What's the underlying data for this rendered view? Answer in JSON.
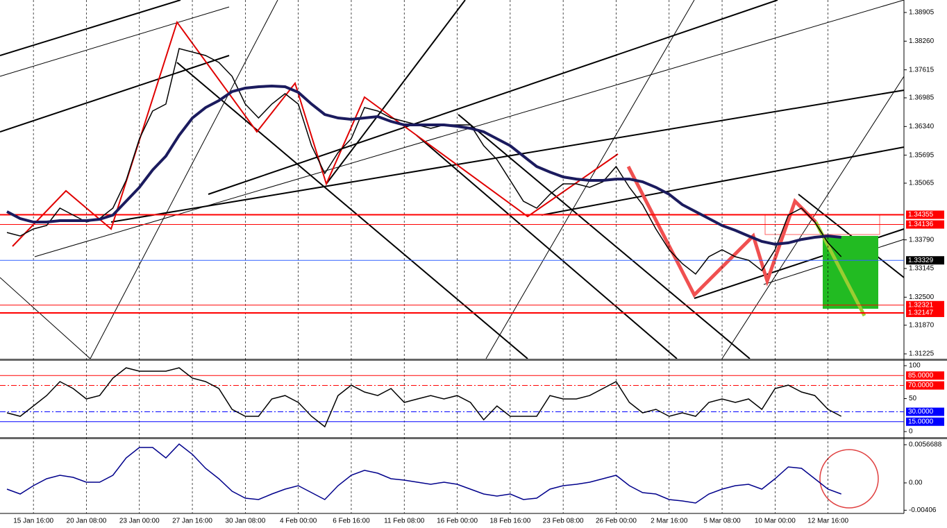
{
  "chart_data": [
    {
      "type": "line",
      "categories": [
        null,
        null,
        "15 Jan 16:00",
        null,
        null,
        null,
        "20 Jan 08:00",
        null,
        null,
        null,
        "23 Jan 00:00",
        null,
        null,
        null,
        "27 Jan 16:00",
        null,
        null,
        null,
        "30 Jan 08:00",
        null,
        null,
        null,
        "4 Feb 00:00",
        null,
        null,
        null,
        "6 Feb 16:00",
        null,
        null,
        null,
        "11 Feb 08:00",
        null,
        null,
        null,
        "16 Feb 00:00",
        null,
        null,
        null,
        "18 Feb 16:00",
        null,
        null,
        null,
        "23 Feb 08:00",
        null,
        null,
        null,
        "26 Feb 00:00",
        null,
        null,
        null,
        "2 Mar 16:00",
        null,
        null,
        null,
        "5 Mar 08:00",
        null,
        null,
        null,
        "10 Mar 00:00",
        null,
        null,
        null,
        "12 Mar 16:00",
        null
      ],
      "series": [
        {
          "color": "#000000",
          "values": [
            1.33956,
            1.33878,
            1.34035,
            1.34113,
            1.34503,
            1.34347,
            1.34191,
            1.34269,
            1.34503,
            1.35127,
            1.36064,
            1.36688,
            1.36844,
            1.38093,
            1.38015,
            1.37937,
            1.37781,
            1.37469,
            1.36844,
            1.36532,
            1.36844,
            1.37079,
            1.36844,
            1.35908,
            1.35283,
            1.35752,
            1.36064,
            1.36766,
            1.36688,
            1.36532,
            1.36454,
            1.36376,
            1.36298,
            1.36376,
            1.36376,
            1.36376,
            1.35908,
            1.35596,
            1.35127,
            1.34659,
            1.34503,
            1.34815,
            1.35049,
            1.35049,
            1.34971,
            1.35096,
            1.35439,
            1.34971,
            1.34581,
            1.34035,
            1.33566,
            1.33254,
            1.3302,
            1.3341,
            1.33566,
            1.3341,
            1.33332,
            1.33098,
            1.33566,
            1.34347,
            1.34503,
            1.34191,
            1.33722,
            1.3341
          ]
        },
        {
          "color": "#1b1b5e",
          "values": [
            1.34425,
            1.34269,
            1.34191,
            1.34191,
            1.34222,
            1.34222,
            1.34222,
            1.34253,
            1.34347,
            1.34659,
            1.34971,
            1.35361,
            1.35674,
            1.36142,
            1.36532,
            1.36766,
            1.36922,
            1.37125,
            1.37203,
            1.37235,
            1.3725,
            1.37235,
            1.3711,
            1.36844,
            1.3661,
            1.36532,
            1.36501,
            1.36532,
            1.36563,
            1.36454,
            1.36376,
            1.36376,
            1.36376,
            1.36376,
            1.36345,
            1.36298,
            1.3622,
            1.36064,
            1.35908,
            1.35674,
            1.35439,
            1.35315,
            1.35205,
            1.35158,
            1.35127,
            1.35127,
            1.35158,
            1.35158,
            1.35096,
            1.34971,
            1.34815,
            1.34581,
            1.34425,
            1.34269,
            1.34113,
            1.34003,
            1.33878,
            1.33754,
            1.33691,
            1.33722,
            1.338,
            1.33847,
            1.33878,
            1.33847
          ]
        }
      ],
      "ylim": [
        1.31116,
        1.39186
      ],
      "yticks": [
        1.38905,
        {
          "value": 1.3826,
          "label": "1.38260"
        },
        1.37615,
        1.36985,
        {
          "value": 1.3634,
          "label": "1.36340"
        },
        1.35695,
        1.35065,
        {
          "value": 1.3379,
          "label": "1.33790"
        },
        1.33145,
        {
          "value": 1.325,
          "label": "1.32500"
        },
        {
          "value": 1.3187,
          "label": "1.31870"
        },
        1.31225
      ],
      "levels": [
        {
          "value": 1.34355,
          "color": "#ff0000",
          "width": 2
        },
        {
          "value": 1.34136,
          "color": "#ff0000",
          "width": 1
        },
        {
          "value": 1.33329,
          "color": "#000000",
          "line_color": "#3060ff",
          "width": 1
        },
        {
          "value": 1.32321,
          "color": "#ff0000",
          "width": 1
        },
        {
          "value": 1.32147,
          "color": "#ff0000",
          "width": 2
        }
      ],
      "grid": true
    },
    {
      "type": "line",
      "series": [
        {
          "color": "#000000",
          "values": [
            28.4,
            23.2,
            38.9,
            54.7,
            75.8,
            65.3,
            49.5,
            54.7,
            81.1,
            96.8,
            91.6,
            91.6,
            91.6,
            96.8,
            81.1,
            75.8,
            65.3,
            33.7,
            23.2,
            23.2,
            49.5,
            54.7,
            44.2,
            23.2,
            7.4,
            54.7,
            70.5,
            60,
            54.7,
            65.3,
            44.2,
            49.5,
            54.7,
            49.5,
            54.7,
            44.2,
            17.9,
            38.9,
            23.2,
            23.2,
            23.2,
            54.7,
            49.5,
            49.5,
            54.7,
            65.3,
            75.8,
            44.2,
            28.4,
            33.7,
            23.2,
            28.4,
            23.2,
            44.2,
            49.5,
            44.2,
            49.5,
            33.7,
            65.3,
            70.5,
            60,
            54.7,
            33.7,
            23.2
          ]
        }
      ],
      "ylim": [
        -8.4,
        107.4
      ],
      "yticks": [
        0,
        50,
        100
      ],
      "levels": [
        {
          "value": 85,
          "label": "85.0000",
          "color": "#ff0000",
          "width": 1
        },
        {
          "value": 70,
          "label": "70.0000",
          "color": "#ff0000",
          "width": 1,
          "dashed": true
        },
        {
          "value": 30,
          "label": "30.0000",
          "color": "#0000ff",
          "width": 1,
          "dashed": true
        },
        {
          "value": 15,
          "label": "15.0000",
          "color": "#0000ff",
          "width": 1
        }
      ]
    },
    {
      "type": "line",
      "series": [
        {
          "color": "#00008b",
          "values": [
            -0.00093,
            -0.00165,
            -0.00041,
            0.00062,
            0.00113,
            0.00082,
            0.0001,
            0.0001,
            0.00113,
            0.00371,
            0.00526,
            0.00526,
            0.00371,
            0.00577,
            0.00423,
            0.00216,
            0.00062,
            -0.00124,
            -0.00227,
            -0.00247,
            -0.00165,
            -0.00093,
            -0.00041,
            -0.00144,
            -0.00247,
            -0.00041,
            0.00113,
            0.00186,
            0.00144,
            0.00062,
            0.00041,
            0.0001,
            -0.00021,
            0.0001,
            -0.00021,
            -0.00093,
            -0.00165,
            -0.00196,
            -0.00165,
            -0.00247,
            -0.00227,
            -0.00093,
            -0.00041,
            -0.00021,
            0.0001,
            0.00062,
            0.00113,
            -0.00041,
            -0.00144,
            -0.00165,
            -0.00247,
            -0.00268,
            -0.00299,
            -0.00165,
            -0.00093,
            -0.00041,
            -0.00021,
            -0.00093,
            0.00062,
            0.00237,
            0.00216,
            0.00062,
            -0.00093,
            -0.00165
          ]
        }
      ],
      "ylim": [
        -0.00433,
        0.00649
      ],
      "yticks": [
        -0.00406,
        {
          "value": 0,
          "label": "0.00"
        },
        0.0056688
      ]
    }
  ]
}
